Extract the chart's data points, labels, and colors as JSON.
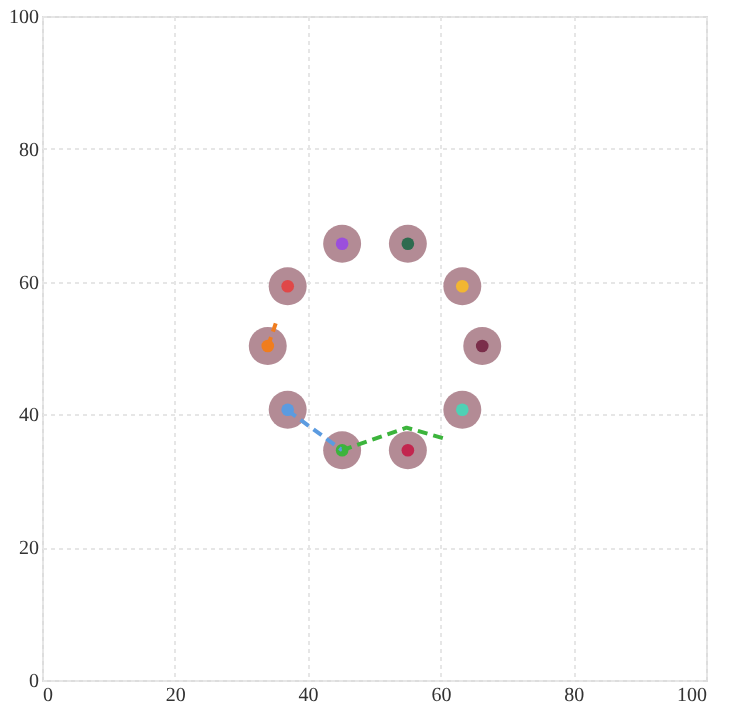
{
  "chart_data": {
    "type": "scatter",
    "xlim": [
      0,
      100
    ],
    "ylim": [
      0,
      100
    ],
    "xticks": [
      0,
      20,
      40,
      60,
      80,
      100
    ],
    "yticks": [
      0,
      20,
      40,
      60,
      80,
      100
    ],
    "grid": true,
    "series": [
      {
        "marker": "circle",
        "color": "#b38b95",
        "x": [
          45.2,
          55.1,
          63.3,
          66.3,
          63.3,
          55.1,
          45.2,
          37.0,
          34.0,
          37.0
        ],
        "values": [
          65.7,
          65.7,
          59.3,
          50.3,
          40.7,
          34.6,
          34.6,
          40.7,
          50.3,
          59.3
        ]
      },
      {
        "marker": "circle",
        "colors": [
          "#9b4fdc",
          "#2e6b4f",
          "#f2b632",
          "#7a2e4a",
          "#4fd1b5",
          "#c2264e",
          "#3cb43c",
          "#5b9be0",
          "#f07d1e",
          "#e04848"
        ],
        "x": [
          45.2,
          55.1,
          63.3,
          66.3,
          63.3,
          55.1,
          45.2,
          37.0,
          34.0,
          37.0
        ],
        "values": [
          65.7,
          65.7,
          59.3,
          50.3,
          40.7,
          34.6,
          34.6,
          40.7,
          50.3,
          59.3
        ]
      },
      {
        "type": "line",
        "line_style": "dashed",
        "color": "#5b9be0",
        "x": [
          37.0,
          45.2
        ],
        "values": [
          40.6,
          34.6
        ]
      },
      {
        "type": "line",
        "line_style": "dashed",
        "color": "#3cb43c",
        "x": [
          45.2,
          54.9,
          60.5
        ],
        "values": [
          34.6,
          38.0,
          36.4
        ]
      },
      {
        "type": "line",
        "line_style": "dashed",
        "color": "#f07d1e",
        "x": [
          34.0,
          35.2
        ],
        "values": [
          50.2,
          53.7
        ]
      }
    ]
  }
}
